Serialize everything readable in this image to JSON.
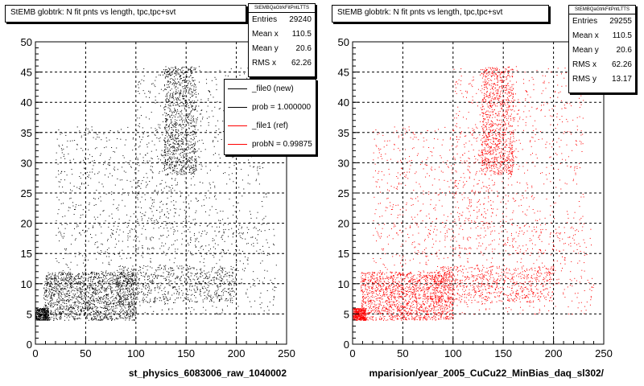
{
  "chart_data": [
    {
      "type": "scatter",
      "title": "StEMB globtrk: N fit pnts vs length, tpc,tpc+svt",
      "xlabel": "st_physics_6083006_raw_1040002",
      "ylabel": "",
      "xlim": [
        0,
        250
      ],
      "ylim": [
        0,
        50
      ],
      "xticks": [
        0,
        50,
        100,
        150,
        200,
        250
      ],
      "yticks": [
        0,
        5,
        10,
        15,
        20,
        25,
        30,
        35,
        40,
        45,
        50
      ],
      "grid": true,
      "series": [
        {
          "name": "_file0 (new)",
          "color": "#000000"
        }
      ],
      "stats": {
        "header": "StEMBQaGtrkFitPntLTTS",
        "rows": [
          {
            "label": "Entries",
            "value": "29240"
          },
          {
            "label": "Mean x",
            "value": "110.5"
          },
          {
            "label": "Mean y",
            "value": "20.6"
          },
          {
            "label": "RMS x",
            "value": "62.26"
          }
        ]
      },
      "legend": {
        "placement": "top-right",
        "entries": [
          {
            "label": "_file0 (new)",
            "color": "#000000"
          },
          {
            "label": "prob = 1.000000",
            "color": "#000000"
          },
          {
            "label": "_file1 (ref)",
            "color": "#ff0000"
          },
          {
            "label": "probN = 0.99875",
            "color": "#ff0000"
          }
        ]
      },
      "density_regions": [
        {
          "x_range": [
            0,
            13
          ],
          "y_range": [
            4,
            6
          ],
          "weight": 0.07
        },
        {
          "x_range": [
            8,
            100
          ],
          "y_range": [
            4,
            12
          ],
          "weight": 0.3
        },
        {
          "x_range": [
            80,
            200
          ],
          "y_range": [
            7,
            13
          ],
          "weight": 0.12
        },
        {
          "x_range": [
            128,
            160
          ],
          "y_range": [
            28,
            46
          ],
          "weight": 0.18
        },
        {
          "x_range": [
            20,
            140
          ],
          "y_range": [
            5,
            36
          ],
          "weight": 0.15
        },
        {
          "x_range": [
            100,
            230
          ],
          "y_range": [
            15,
            46
          ],
          "weight": 0.13
        },
        {
          "x_range": [
            150,
            240
          ],
          "y_range": [
            5,
            20
          ],
          "weight": 0.05
        }
      ]
    },
    {
      "type": "scatter",
      "title": "StEMB globtrk: N fit pnts vs length, tpc,tpc+svt",
      "xlabel": "mparision/year_2005_CuCu22_MinBias_daq_sl302/",
      "ylabel": "",
      "xlim": [
        0,
        250
      ],
      "ylim": [
        0,
        50
      ],
      "xticks": [
        0,
        50,
        100,
        150,
        200,
        250
      ],
      "yticks": [
        0,
        5,
        10,
        15,
        20,
        25,
        30,
        35,
        40,
        45,
        50
      ],
      "grid": true,
      "series": [
        {
          "name": "_file1 (ref)",
          "color": "#ff0000"
        }
      ],
      "stats": {
        "header": "StEMBQaGtrkFitPntLTTS",
        "rows": [
          {
            "label": "Entries",
            "value": "29255"
          },
          {
            "label": "Mean x",
            "value": "110.5"
          },
          {
            "label": "Mean y",
            "value": "20.6"
          },
          {
            "label": "RMS x",
            "value": "62.26"
          },
          {
            "label": "RMS y",
            "value": "13.17"
          }
        ]
      },
      "density_regions": [
        {
          "x_range": [
            0,
            13
          ],
          "y_range": [
            4,
            6
          ],
          "weight": 0.07
        },
        {
          "x_range": [
            8,
            100
          ],
          "y_range": [
            4,
            12
          ],
          "weight": 0.3
        },
        {
          "x_range": [
            80,
            200
          ],
          "y_range": [
            7,
            13
          ],
          "weight": 0.12
        },
        {
          "x_range": [
            128,
            160
          ],
          "y_range": [
            28,
            46
          ],
          "weight": 0.18
        },
        {
          "x_range": [
            20,
            140
          ],
          "y_range": [
            5,
            36
          ],
          "weight": 0.15
        },
        {
          "x_range": [
            100,
            230
          ],
          "y_range": [
            15,
            46
          ],
          "weight": 0.13
        },
        {
          "x_range": [
            150,
            240
          ],
          "y_range": [
            5,
            20
          ],
          "weight": 0.05
        }
      ]
    }
  ]
}
